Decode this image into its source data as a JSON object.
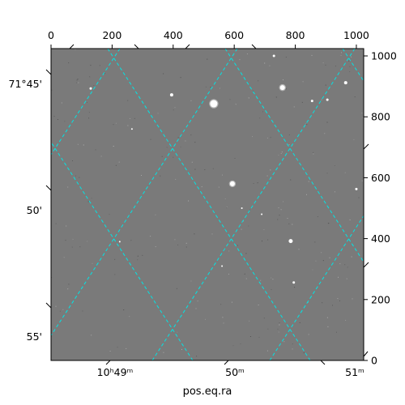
{
  "chart_data": {
    "type": "scatter",
    "title": "",
    "image_background": "#7a7a7a",
    "grid": true,
    "grid_color": "#00e5e5",
    "top_axis": {
      "ticks": [
        0,
        200,
        400,
        600,
        800,
        1000
      ],
      "labels": [
        "0",
        "200",
        "400",
        "600",
        "800",
        "1000"
      ],
      "range": [
        0,
        1024
      ]
    },
    "right_axis": {
      "ticks": [
        0,
        200,
        400,
        600,
        800,
        1000
      ],
      "labels": [
        "0",
        "200",
        "400",
        "600",
        "800",
        "1000"
      ],
      "range": [
        0,
        1024
      ]
    },
    "left_axis": {
      "labels": [
        "71°45'",
        "50'",
        "55'"
      ]
    },
    "bottom_axis": {
      "title": "pos.eq.ra",
      "labels": [
        "10ʰ49ᵐ",
        "50ᵐ",
        "51ᵐ"
      ]
    },
    "stars": {
      "x": [
        533,
        758,
        594,
        395,
        130,
        965,
        1000,
        785,
        795,
        730,
        855,
        905,
        225,
        625,
        560,
        265,
        690
      ],
      "y": [
        843,
        896,
        580,
        872,
        893,
        912,
        563,
        392,
        256,
        1000,
        852,
        856,
        390,
        500,
        310,
        760,
        480
      ],
      "size": [
        4.5,
        3,
        3,
        2,
        1.5,
        2,
        1.5,
        2.5,
        1.5,
        1.5,
        1.5,
        1.5,
        1,
        1,
        1,
        1,
        1
      ]
    }
  }
}
